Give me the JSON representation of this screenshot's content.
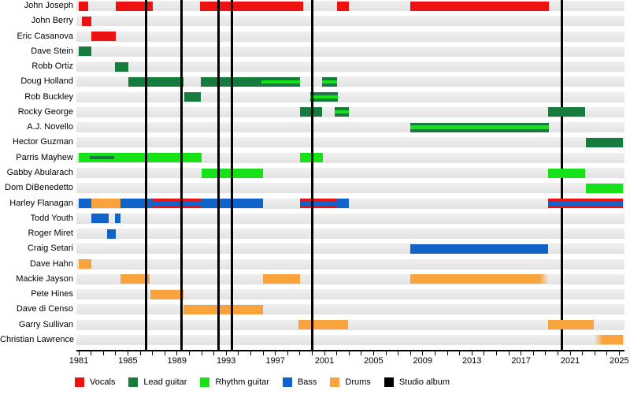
{
  "chart_data": {
    "type": "bar",
    "subtype": "band-membership-timeline-gantt",
    "title": "",
    "x_axis": {
      "min": 1981,
      "max": 2025.5,
      "tick_step_years": 1,
      "label_step_years": 4,
      "labeled_years": [
        1981,
        1985,
        1989,
        1993,
        1997,
        2001,
        2005,
        2009,
        2013,
        2017,
        2021,
        2025
      ]
    },
    "grid": "horizontal-row-bands",
    "legend_position": "bottom",
    "roles": {
      "vocals": {
        "label": "Vocals",
        "color": "#ee1111"
      },
      "lead": {
        "label": "Lead guitar",
        "color": "#157b3f"
      },
      "rhythm": {
        "label": "Rhythm guitar",
        "color": "#17e217"
      },
      "bass": {
        "label": "Bass",
        "color": "#1063c8"
      },
      "drums": {
        "label": "Drums",
        "color": "#f8a33b"
      },
      "album": {
        "label": "Studio album",
        "color": "#000000"
      }
    },
    "legend_order": [
      "vocals",
      "lead",
      "rhythm",
      "bass",
      "drums",
      "album"
    ],
    "albums": {
      "label": "Studio album",
      "color": "#000000",
      "lines": [
        {
          "year": 1986.45,
          "layer": "front"
        },
        {
          "year": 1989.35,
          "layer": "front"
        },
        {
          "year": 1992.4,
          "layer": "front"
        },
        {
          "year": 1993.45,
          "layer": "front"
        },
        {
          "year": 2000.0,
          "layer": "front"
        },
        {
          "year": 2020.35,
          "layer": "back"
        }
      ]
    },
    "members": [
      {
        "name": "John Joseph",
        "segments": [
          {
            "from": 1981.0,
            "to": 1981.75,
            "role": "vocals"
          },
          {
            "from": 1984.0,
            "to": 1987.0,
            "role": "vocals"
          },
          {
            "from": 1990.9,
            "to": 1999.3,
            "role": "vocals"
          },
          {
            "from": 2002.0,
            "to": 2003.0,
            "role": "vocals"
          },
          {
            "from": 2008.0,
            "to": 2019.3,
            "role": "vocals"
          }
        ]
      },
      {
        "name": "John Berry",
        "segments": [
          {
            "from": 1981.25,
            "to": 1982.0,
            "role": "vocals"
          }
        ]
      },
      {
        "name": "Eric Casanova",
        "segments": [
          {
            "from": 1982.0,
            "to": 1984.0,
            "role": "vocals"
          }
        ]
      },
      {
        "name": "Dave Stein",
        "segments": [
          {
            "from": 1981.0,
            "to": 1982.0,
            "role": "lead"
          }
        ]
      },
      {
        "name": "Robb Ortiz",
        "segments": [
          {
            "from": 1983.95,
            "to": 1985.05,
            "role": "lead"
          }
        ]
      },
      {
        "name": "Doug Holland",
        "segments": [
          {
            "from": 1985.05,
            "to": 1989.55,
            "role": "lead"
          },
          {
            "from": 1990.95,
            "to": 1999.0,
            "role": "lead",
            "stripe": {
              "role": "rhythm",
              "from": 1995.85,
              "to": 1999.0,
              "h": 4
            }
          },
          {
            "from": 2000.8,
            "to": 2002.05,
            "role": "lead",
            "stripe": {
              "role": "rhythm",
              "from": 2000.8,
              "to": 2002.05,
              "h": 4
            }
          }
        ]
      },
      {
        "name": "Rob Buckley",
        "segments": [
          {
            "from": 1989.6,
            "to": 1990.95,
            "role": "lead"
          },
          {
            "from": 1999.85,
            "to": 2002.1,
            "role": "lead",
            "stripe": {
              "role": "rhythm",
              "from": 1999.85,
              "to": 2002.1,
              "h": 4
            }
          }
        ]
      },
      {
        "name": "Rocky George",
        "segments": [
          {
            "from": 1999.0,
            "to": 2000.8,
            "role": "lead"
          },
          {
            "from": 2001.8,
            "to": 2003.0,
            "role": "lead",
            "stripe": {
              "role": "rhythm",
              "from": 2001.8,
              "to": 2003.0,
              "h": 4
            }
          },
          {
            "from": 2019.2,
            "to": 2022.25,
            "role": "lead"
          }
        ]
      },
      {
        "name": "A.J. Novello",
        "segments": [
          {
            "from": 2008.0,
            "to": 2019.25,
            "role": "lead",
            "stripe": {
              "role": "rhythm",
              "from": 2008.0,
              "to": 2019.25,
              "h": 5
            }
          }
        ]
      },
      {
        "name": "Hector Guzman",
        "segments": [
          {
            "from": 2022.25,
            "to": 2025.3,
            "role": "lead"
          }
        ]
      },
      {
        "name": "Parris Mayhew",
        "segments": [
          {
            "from": 1981.0,
            "to": 1991.0,
            "role": "rhythm",
            "stripe": {
              "role": "lead",
              "from": 1981.9,
              "to": 1983.9,
              "h": 4
            }
          },
          {
            "from": 1999.0,
            "to": 2000.9,
            "role": "rhythm"
          }
        ]
      },
      {
        "name": "Gabby Abularach",
        "segments": [
          {
            "from": 1991.0,
            "to": 1996.0,
            "role": "rhythm"
          },
          {
            "from": 2019.2,
            "to": 2022.25,
            "role": "rhythm"
          }
        ]
      },
      {
        "name": "Dom DiBenedetto",
        "segments": [
          {
            "from": 2022.25,
            "to": 2025.3,
            "role": "rhythm"
          }
        ]
      },
      {
        "name": "Harley Flanagan",
        "segments": [
          {
            "from": 1981.0,
            "to": 1982.05,
            "role": "bass"
          },
          {
            "from": 1982.05,
            "to": 1984.4,
            "role": "drums"
          },
          {
            "from": 1984.4,
            "to": 1987.0,
            "role": "bass"
          },
          {
            "from": 1987.0,
            "to": 1991.0,
            "role": "bass",
            "edges": "vocals"
          },
          {
            "from": 1991.0,
            "to": 1996.0,
            "role": "bass"
          },
          {
            "from": 1999.0,
            "to": 2002.0,
            "role": "bass",
            "edges": "vocals"
          },
          {
            "from": 2002.0,
            "to": 2003.0,
            "role": "bass"
          },
          {
            "from": 2019.2,
            "to": 2025.3,
            "role": "bass",
            "edges": "vocals"
          }
        ]
      },
      {
        "name": "Todd Youth",
        "segments": [
          {
            "from": 1982.0,
            "to": 1983.45,
            "role": "bass"
          },
          {
            "from": 1983.95,
            "to": 1984.4,
            "role": "bass"
          }
        ]
      },
      {
        "name": "Roger Miret",
        "segments": [
          {
            "from": 1983.3,
            "to": 1984.0,
            "role": "bass"
          }
        ]
      },
      {
        "name": "Craig Setari",
        "segments": [
          {
            "from": 2008.0,
            "to": 2019.2,
            "role": "bass"
          }
        ]
      },
      {
        "name": "Dave Hahn",
        "segments": [
          {
            "from": 1981.0,
            "to": 1982.0,
            "role": "drums"
          }
        ]
      },
      {
        "name": "Mackie Jayson",
        "segments": [
          {
            "from": 1984.4,
            "to": 1986.8,
            "role": "drums"
          },
          {
            "from": 1996.0,
            "to": 1999.0,
            "role": "drums"
          },
          {
            "from": 2008.0,
            "to": 2019.3,
            "role": "drums",
            "fade": "right"
          }
        ]
      },
      {
        "name": "Pete Hines",
        "segments": [
          {
            "from": 1986.8,
            "to": 1989.5,
            "role": "drums"
          }
        ]
      },
      {
        "name": "Dave di Censo",
        "segments": [
          {
            "from": 1989.5,
            "to": 1996.0,
            "role": "drums"
          }
        ]
      },
      {
        "name": "Garry Sullivan",
        "segments": [
          {
            "from": 1998.85,
            "to": 2002.9,
            "role": "drums"
          },
          {
            "from": 2019.2,
            "to": 2022.9,
            "role": "drums"
          }
        ]
      },
      {
        "name": "Christian Lawrence",
        "segments": [
          {
            "from": 2022.9,
            "to": 2025.3,
            "role": "drums",
            "fade": "left"
          }
        ]
      }
    ]
  }
}
